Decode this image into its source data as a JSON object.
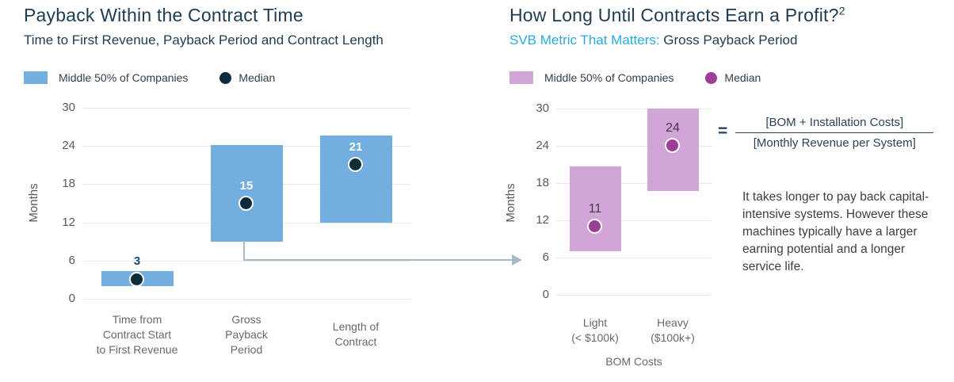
{
  "chart_data": [
    {
      "type": "bar",
      "subtype": "floating-range-bar",
      "title": "Payback Within the Contract Time",
      "subtitle": "Time to First Revenue, Payback Period and Contract Length",
      "legend": {
        "range": "Middle 50% of Companies",
        "median": "Median"
      },
      "ylabel": "Months",
      "ylim": [
        0,
        30
      ],
      "yticks": [
        0,
        6,
        12,
        18,
        24,
        30
      ],
      "grid": "horizontal",
      "bar_color": "#72aedf",
      "median_color": "#0d2b3d",
      "categories": [
        [
          "Time from",
          "Contract Start",
          "to First Revenue"
        ],
        [
          "Gross",
          "Payback",
          "Period"
        ],
        [
          "Length of",
          "Contract"
        ]
      ],
      "bars": [
        {
          "low": 2,
          "high": 4.3,
          "median": 3,
          "label": "3",
          "label_placement": "above",
          "label_color": "#174a70"
        },
        {
          "low": 9,
          "high": 24.2,
          "median": 15,
          "label": "15",
          "label_placement": "inside",
          "label_color": "#ffffff"
        },
        {
          "low": 12,
          "high": 25.7,
          "median": 21,
          "label": "21",
          "label_placement": "inside",
          "label_color": "#ffffff"
        }
      ]
    },
    {
      "type": "bar",
      "subtype": "floating-range-bar",
      "title": "How Long Until Contracts Earn a Profit?",
      "title_superscript": "2",
      "subtitle_accent": "SVB Metric That Matters:",
      "subtitle": " Gross Payback Period",
      "legend": {
        "range": "Middle 50% of Companies",
        "median": "Median"
      },
      "ylabel": "Months",
      "xlabel": "BOM Costs",
      "ylim": [
        0,
        30
      ],
      "yticks": [
        0,
        6,
        12,
        18,
        24,
        30
      ],
      "grid": "horizontal",
      "bar_color": "#d2a5d8",
      "median_color": "#9c3e96",
      "categories": [
        [
          "Light",
          "(< $100k)"
        ],
        [
          "Heavy",
          "($100k+)"
        ]
      ],
      "bars": [
        {
          "low": 7,
          "high": 20.7,
          "median": 11,
          "label": "11",
          "label_placement": "inside",
          "label_color": "#3f3f3f"
        },
        {
          "low": 16.7,
          "high": 30,
          "median": 24,
          "label": "24",
          "label_placement": "inside",
          "label_color": "#3f3f3f"
        }
      ]
    }
  ],
  "annotation": {
    "equals": "=",
    "numerator": "[BOM + Installation Costs]",
    "denominator": "[Monthly Revenue per System]",
    "note": "It takes longer to pay back capital-intensive systems. However these machines typically have a larger earning potential and a longer service life."
  },
  "colors": {
    "title_navy": "#1d3c53",
    "accent_cyan": "#29abe2",
    "blue_bar": "#72aedf",
    "navy_median": "#0d2b3d",
    "purple_bar": "#d2a5d8",
    "purple_median": "#9c3e96",
    "axis_gray": "#595959",
    "gridline": "#e8e8e8",
    "connector_arrow": "#a9bac7"
  }
}
